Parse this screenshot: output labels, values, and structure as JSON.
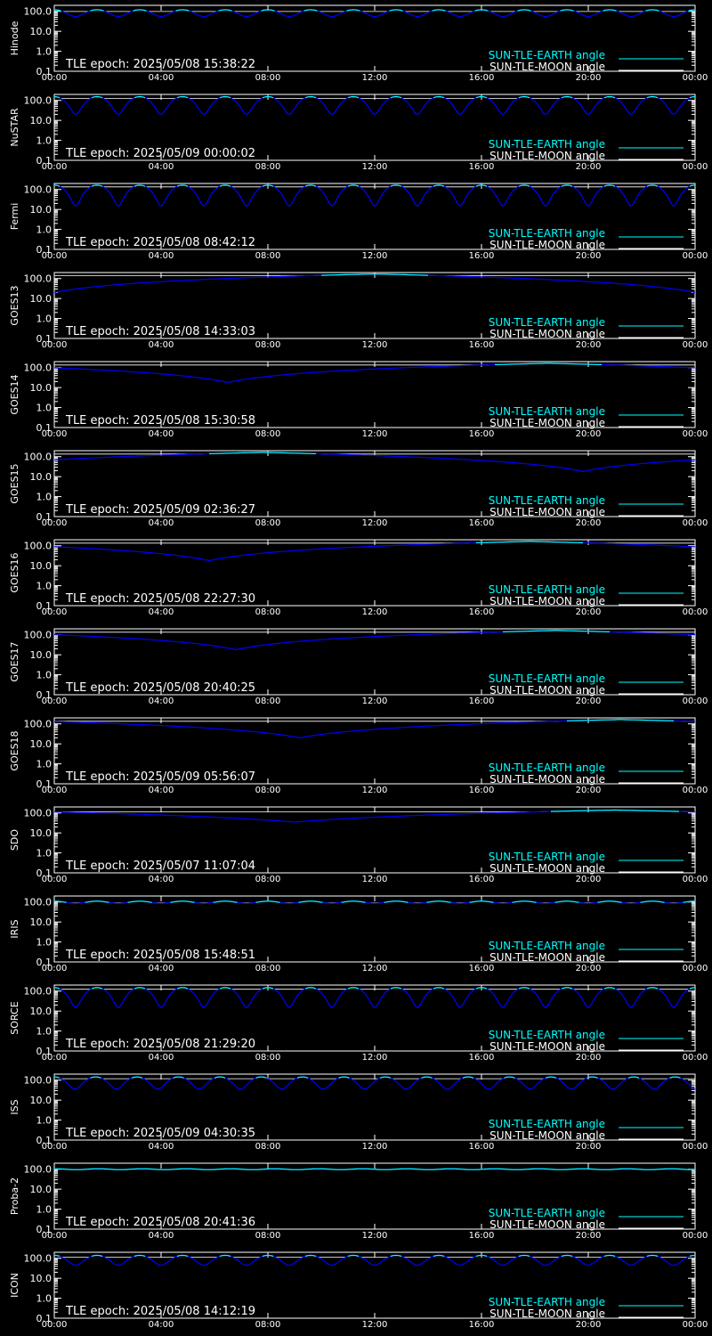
{
  "chart_data": {
    "type": "line",
    "x_ticks": [
      "00:00",
      "04:00",
      "08:00",
      "12:00",
      "16:00",
      "20:00",
      "00:00"
    ],
    "y_ticks": [
      "100.0",
      "10.0",
      "1.0",
      "0.1"
    ],
    "y_scale": "log",
    "ylim": [
      0.1,
      100
    ],
    "legend": {
      "earth": "SUN-TLE-EARTH angle",
      "moon": "SUN-TLE-MOON angle",
      "placement": "bottom-right"
    },
    "colors": {
      "earth": "#00ffff",
      "moon": "#0000ff",
      "text": "#ffffff",
      "background": "#000000"
    },
    "panels": [
      {
        "name": "Hinode",
        "epoch": "TLE epoch: 2025/05/08 15:38:22",
        "pattern": "fast",
        "period_h": 1.6,
        "max": 120,
        "min": 55
      },
      {
        "name": "NuSTAR",
        "epoch": "TLE epoch: 2025/05/09 00:00:02",
        "pattern": "fast",
        "period_h": 1.6,
        "max": 155,
        "min": 20
      },
      {
        "name": "Fermi",
        "epoch": "TLE epoch: 2025/05/08 08:42:12",
        "pattern": "fast",
        "period_h": 1.6,
        "max": 165,
        "min": 15
      },
      {
        "name": "GOES13",
        "epoch": "TLE epoch: 2025/05/08 14:33:03",
        "pattern": "daily",
        "min_hour": 0,
        "max": 170,
        "min": 20
      },
      {
        "name": "GOES14",
        "epoch": "TLE epoch: 2025/05/08 15:30:58",
        "pattern": "daily",
        "min_hour": 6.5,
        "max": 165,
        "min": 18
      },
      {
        "name": "GOES15",
        "epoch": "TLE epoch: 2025/05/09 02:36:27",
        "pattern": "daily",
        "min_hour": 19.8,
        "max": 165,
        "min": 18
      },
      {
        "name": "GOES16",
        "epoch": "TLE epoch: 2025/05/08 22:27:30",
        "pattern": "daily",
        "min_hour": 5.8,
        "max": 165,
        "min": 18
      },
      {
        "name": "GOES17",
        "epoch": "TLE epoch: 2025/05/08 20:40:25",
        "pattern": "daily",
        "min_hour": 6.8,
        "max": 165,
        "min": 18
      },
      {
        "name": "GOES18",
        "epoch": "TLE epoch: 2025/05/09 05:56:07",
        "pattern": "daily",
        "min_hour": 9.2,
        "max": 165,
        "min": 20
      },
      {
        "name": "SDO",
        "epoch": "TLE epoch: 2025/05/07 11:07:04",
        "pattern": "daily",
        "min_hour": 9,
        "max": 140,
        "min": 35
      },
      {
        "name": "IRIS",
        "epoch": "TLE epoch: 2025/05/08 15:48:51",
        "pattern": "fast",
        "period_h": 1.6,
        "max": 110,
        "min": 85
      },
      {
        "name": "SORCE",
        "epoch": "TLE epoch: 2025/05/08 21:29:20",
        "pattern": "fast",
        "period_h": 1.6,
        "max": 150,
        "min": 15
      },
      {
        "name": "ISS",
        "epoch": "TLE epoch: 2025/05/09 04:30:35",
        "pattern": "fast",
        "period_h": 1.55,
        "max": 145,
        "min": 35
      },
      {
        "name": "Proba-2",
        "epoch": "TLE epoch: 2025/05/08 20:41:36",
        "pattern": "fast",
        "period_h": 1.65,
        "max": 105,
        "min": 95
      },
      {
        "name": "ICON",
        "epoch": "TLE epoch: 2025/05/08 14:12:19",
        "pattern": "fast",
        "period_h": 1.6,
        "max": 140,
        "min": 45
      }
    ]
  }
}
